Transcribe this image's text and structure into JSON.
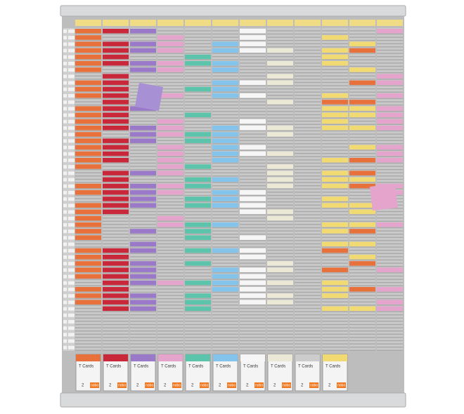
{
  "boxes": [
    {
      "label": "T Cards",
      "count": "2",
      "brand": "nobo"
    },
    {
      "label": "T Cards",
      "count": "2",
      "brand": "nobo"
    },
    {
      "label": "T Cards",
      "count": "2",
      "brand": "nobo"
    },
    {
      "label": "T Cards",
      "count": "2",
      "brand": "nobo"
    },
    {
      "label": "T Cards",
      "count": "2",
      "brand": "nobo"
    },
    {
      "label": "T Cards",
      "count": "2",
      "brand": "nobo"
    },
    {
      "label": "T Cards",
      "count": "2",
      "brand": "nobo"
    },
    {
      "label": "T Cards",
      "count": "2",
      "brand": "nobo"
    },
    {
      "label": "T Cards",
      "count": "2",
      "brand": "nobo"
    },
    {
      "label": "T Cards",
      "count": "2",
      "brand": "nobo"
    }
  ]
}
